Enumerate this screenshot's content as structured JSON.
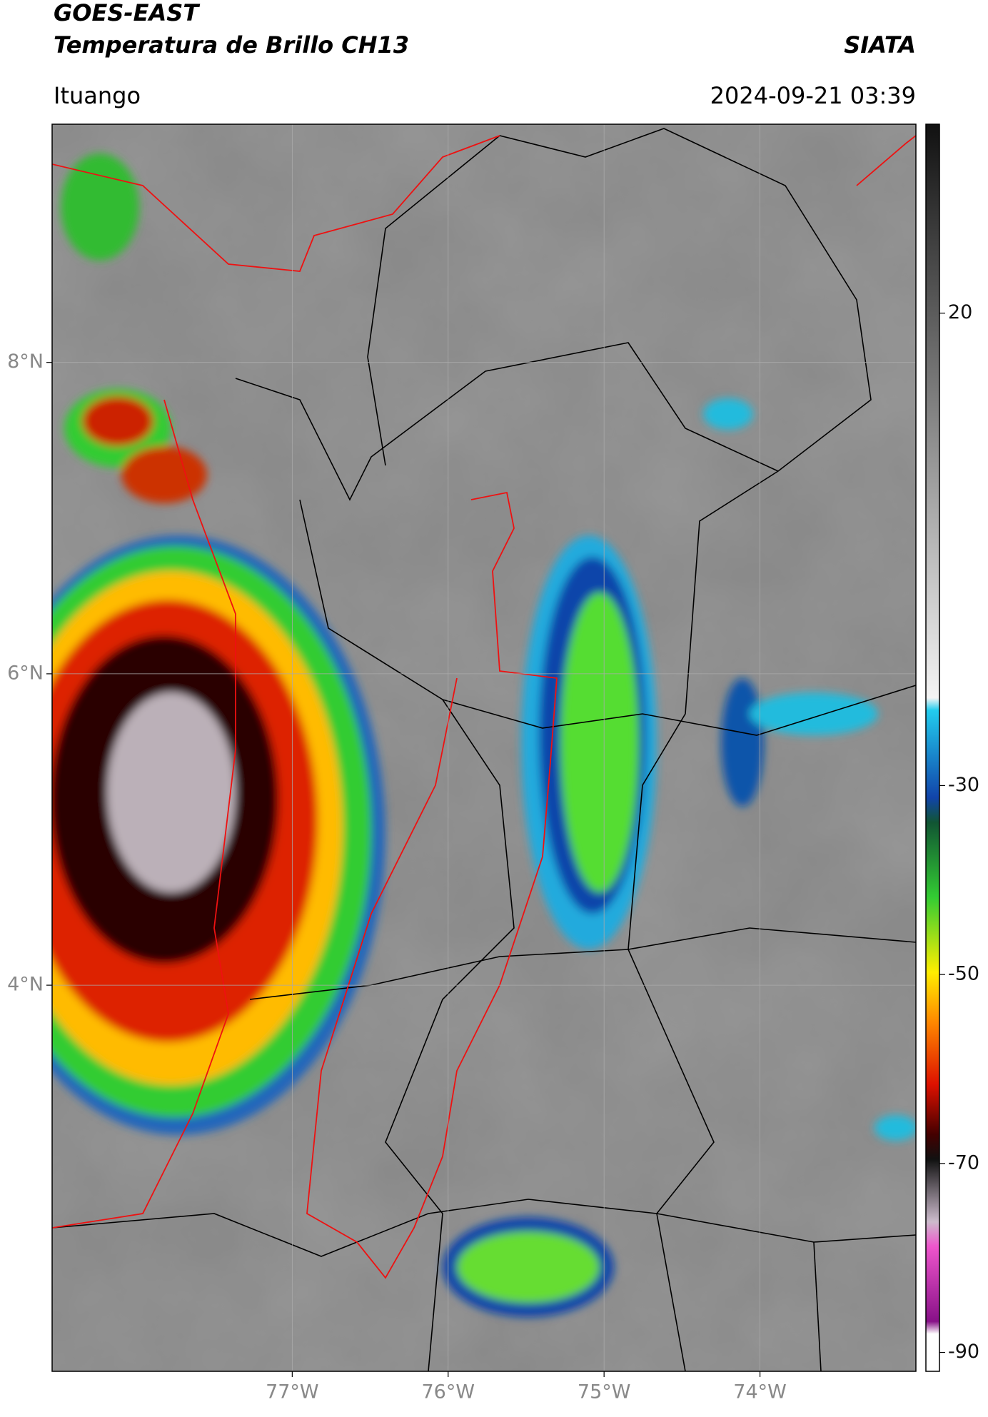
{
  "header": {
    "title": "GOES-EAST",
    "subtitle": "Temperatura de Brillo CH13",
    "source": "SIATA",
    "location": "Ituango",
    "datetime": "2024-09-21 03:39"
  },
  "map": {
    "xlim": [
      -78.54,
      -73.0
    ],
    "ylim": [
      1.52,
      9.53
    ],
    "xticks": [
      {
        "value": -77,
        "label": "77°W"
      },
      {
        "value": -76,
        "label": "76°W"
      },
      {
        "value": -75,
        "label": "75°W"
      },
      {
        "value": -74,
        "label": "74°W"
      }
    ],
    "yticks": [
      {
        "value": 8,
        "label": "8°N"
      },
      {
        "value": 6,
        "label": "6°N"
      },
      {
        "value": 4,
        "label": "4°N"
      }
    ],
    "grid": true
  },
  "colorbar": {
    "lim": [
      40,
      -92
    ],
    "ticks": [
      20,
      -30,
      -50,
      -70,
      -90
    ]
  }
}
